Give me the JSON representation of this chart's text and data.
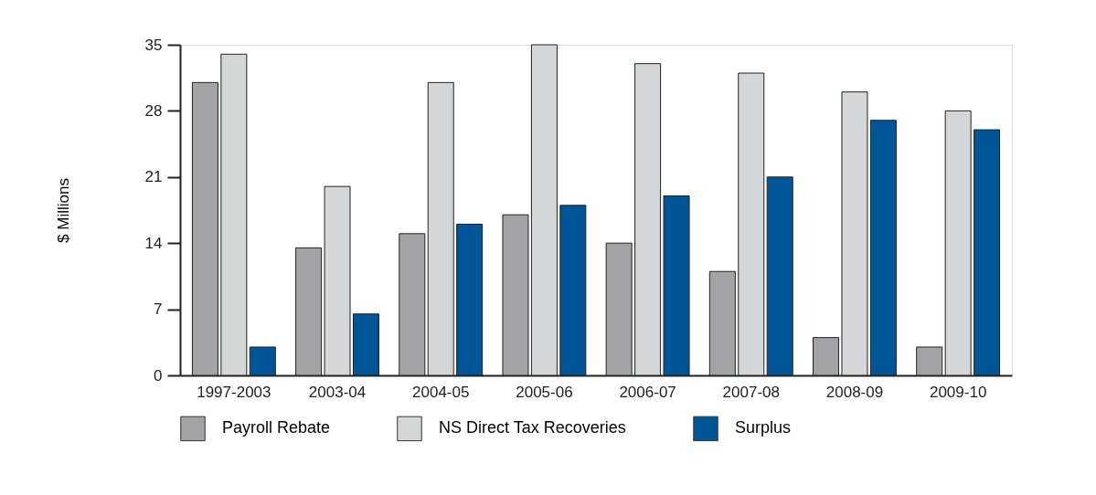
{
  "chart_data": {
    "type": "bar",
    "ylabel": "$ Millions",
    "categories": [
      "1997-2003",
      "2003-04",
      "2004-05",
      "2005-06",
      "2006-07",
      "2007-08",
      "2008-09",
      "2009-10"
    ],
    "series": [
      {
        "name": "Payroll Rebate",
        "color": "#a3a3a6",
        "values": [
          31,
          13.5,
          15,
          17,
          14,
          11,
          4,
          3
        ]
      },
      {
        "name": "NS Direct Tax Recoveries",
        "color": "#d5d6d8",
        "values": [
          34,
          20,
          31,
          35,
          33,
          32,
          30,
          28
        ]
      },
      {
        "name": "Surplus",
        "color": "#005596",
        "values": [
          3,
          6.5,
          16,
          18,
          19,
          21,
          27,
          26
        ]
      }
    ],
    "ylim": [
      0,
      35
    ],
    "yticks": [
      0,
      7,
      14,
      21,
      28,
      35
    ],
    "grid": false,
    "legend": "bottom"
  }
}
